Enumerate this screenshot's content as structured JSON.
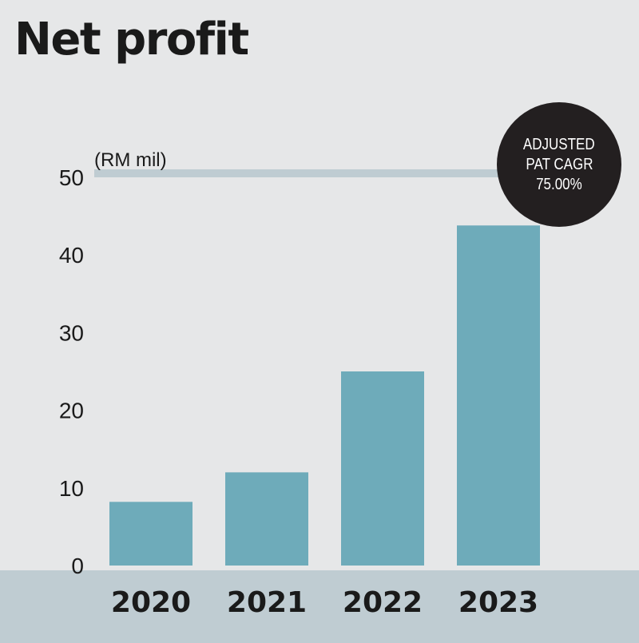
{
  "title": "Net profit",
  "badge": {
    "line1": "ADJUSTED",
    "line2": "PAT CAGR",
    "line3": "75.00%"
  },
  "colors": {
    "background": "#e6e7e8",
    "bar": "#6eabba",
    "axis_band": "#bfccd2",
    "gridline": "#bfccd2",
    "badge": "#231f20",
    "text": "#1a1a1a"
  },
  "chart_data": {
    "type": "bar",
    "title": "Net profit",
    "unit_label": "(RM mil)",
    "categories": [
      "2020",
      "2021",
      "2022",
      "2023"
    ],
    "values": [
      8.2,
      12.0,
      25.0,
      43.8
    ],
    "ylim": [
      0,
      50
    ],
    "yticks": [
      "0",
      "10",
      "20",
      "30",
      "40",
      "50"
    ],
    "xlabel": "",
    "ylabel": "",
    "grid": false,
    "legend": "none"
  }
}
